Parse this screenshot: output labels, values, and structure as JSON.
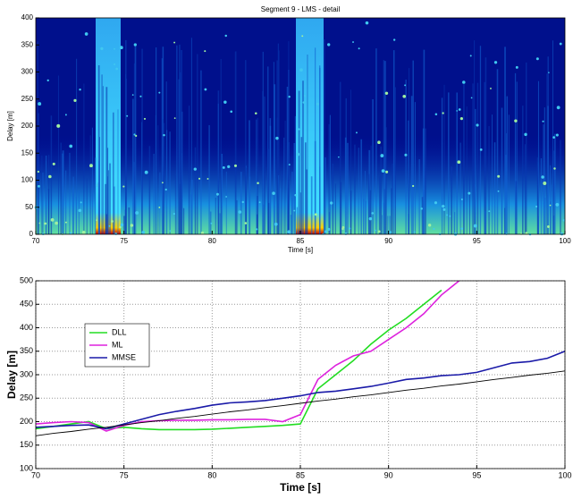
{
  "chart_data": [
    {
      "type": "heatmap",
      "title": "Segment 9 - LMS - detail",
      "xlabel": "Time [s]",
      "ylabel": "Delay [m]",
      "xlim": [
        70,
        100
      ],
      "ylim": [
        0,
        400
      ],
      "xticks": [
        70,
        75,
        80,
        85,
        90,
        95,
        100
      ],
      "yticks": [
        0,
        50,
        100,
        150,
        200,
        250,
        300,
        350,
        400
      ]
    },
    {
      "type": "line",
      "xlabel": "Time [s]",
      "ylabel": "Delay [m]",
      "xlim": [
        70,
        100
      ],
      "ylim": [
        100,
        500
      ],
      "xticks": [
        70,
        75,
        80,
        85,
        90,
        95,
        100
      ],
      "yticks": [
        100,
        150,
        200,
        250,
        300,
        350,
        400,
        450,
        500
      ],
      "grid": true,
      "legend": "left",
      "x": [
        70,
        71,
        72,
        73,
        74,
        75,
        76,
        77,
        78,
        79,
        80,
        81,
        82,
        83,
        84,
        85,
        86,
        87,
        88,
        89,
        90,
        91,
        92,
        93,
        94,
        95,
        96,
        97,
        98,
        99,
        100
      ],
      "series": [
        {
          "name": "DLL",
          "color": "#22dd22",
          "values": [
            185,
            190,
            195,
            200,
            185,
            188,
            185,
            183,
            183,
            183,
            184,
            186,
            188,
            190,
            192,
            195,
            270,
            300,
            330,
            365,
            395,
            420,
            450,
            480,
            null,
            null,
            null,
            null,
            null,
            null,
            null
          ]
        },
        {
          "name": "ML",
          "color": "#dd22dd",
          "values": [
            195,
            198,
            200,
            198,
            180,
            192,
            200,
            202,
            203,
            203,
            204,
            204,
            205,
            205,
            200,
            215,
            290,
            320,
            340,
            350,
            375,
            400,
            430,
            470,
            500,
            null,
            null,
            null,
            null,
            null,
            null
          ]
        },
        {
          "name": "MMSE",
          "color": "#1a1aa8",
          "values": [
            188,
            190,
            192,
            193,
            185,
            195,
            205,
            215,
            222,
            228,
            235,
            240,
            242,
            245,
            250,
            255,
            262,
            265,
            270,
            275,
            282,
            290,
            293,
            298,
            300,
            305,
            315,
            325,
            328,
            335,
            350
          ]
        },
        {
          "color": "#000000",
          "values": [
            170,
            175,
            179,
            184,
            188,
            193,
            198,
            202,
            207,
            211,
            216,
            221,
            225,
            230,
            234,
            239,
            244,
            248,
            253,
            257,
            262,
            267,
            271,
            276,
            280,
            285,
            290,
            294,
            299,
            303,
            308
          ]
        }
      ]
    }
  ]
}
